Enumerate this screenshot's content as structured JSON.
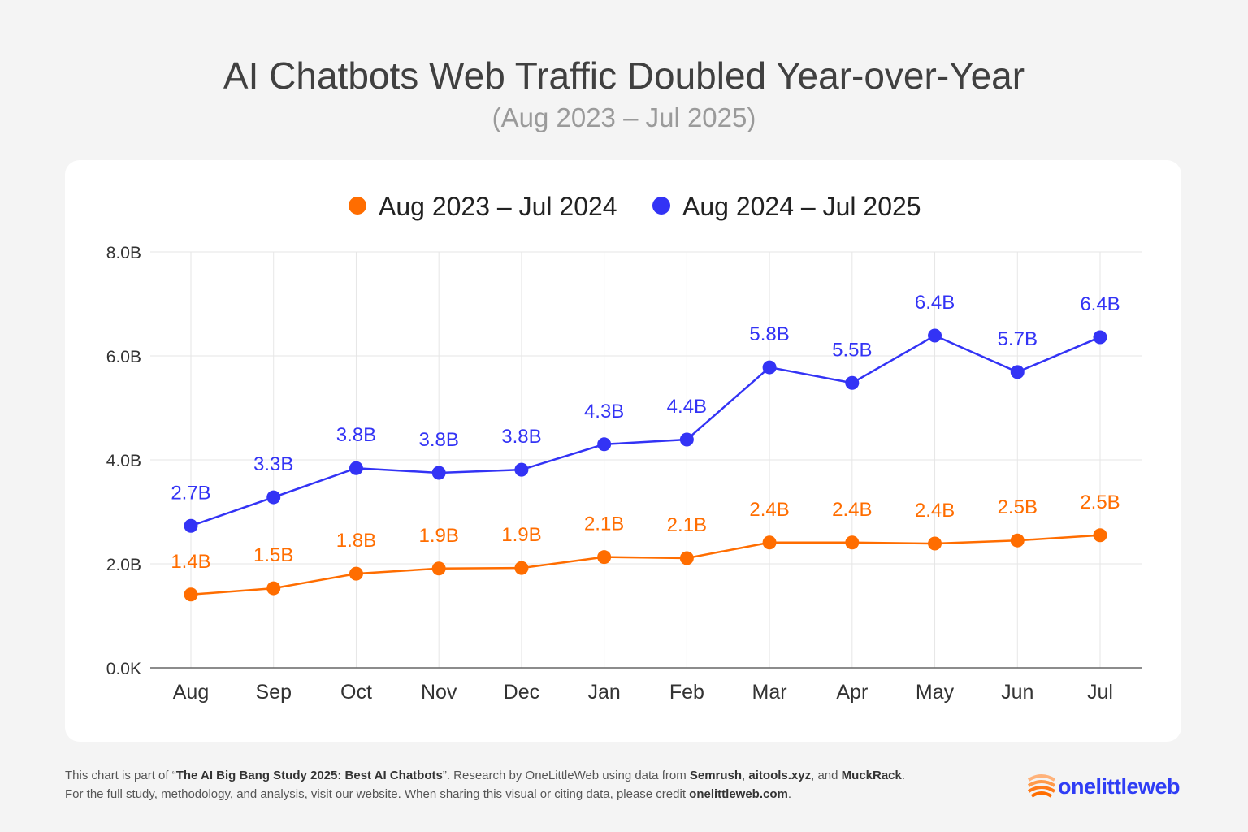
{
  "title": "AI Chatbots Web Traffic Doubled Year-over-Year",
  "subtitle": "(Aug 2023 – Jul 2025)",
  "chart_data": {
    "type": "line",
    "categories": [
      "Aug",
      "Sep",
      "Oct",
      "Nov",
      "Dec",
      "Jan",
      "Feb",
      "Mar",
      "Apr",
      "May",
      "Jun",
      "Jul"
    ],
    "ylim": [
      0,
      8
    ],
    "yticks": [
      0,
      2,
      4,
      6,
      8
    ],
    "ytick_labels": [
      "0.0K",
      "2.0B",
      "4.0B",
      "6.0B",
      "8.0B"
    ],
    "grid": true,
    "legend_position": "top-center",
    "series": [
      {
        "name": "Aug 2023 – Jul 2024",
        "color": "#ff6d00",
        "values": [
          1.41,
          1.53,
          1.81,
          1.91,
          1.92,
          2.13,
          2.11,
          2.41,
          2.41,
          2.39,
          2.45,
          2.55
        ],
        "labels": [
          "1.4B",
          "1.5B",
          "1.8B",
          "1.9B",
          "1.9B",
          "2.1B",
          "2.1B",
          "2.4B",
          "2.4B",
          "2.4B",
          "2.5B",
          "2.5B"
        ]
      },
      {
        "name": "Aug 2024 – Jul 2025",
        "color": "#3333f5",
        "values": [
          2.73,
          3.28,
          3.84,
          3.75,
          3.81,
          4.3,
          4.39,
          5.78,
          5.48,
          6.39,
          5.69,
          6.36
        ],
        "labels": [
          "2.7B",
          "3.3B",
          "3.8B",
          "3.8B",
          "3.8B",
          "4.3B",
          "4.4B",
          "5.8B",
          "5.5B",
          "6.4B",
          "5.7B",
          "6.4B"
        ]
      }
    ]
  },
  "footer": {
    "l1_a": "This chart is part of “",
    "l1_study": "The AI Big Bang Study 2025: Best AI Chatbots",
    "l1_b": "”. Research by OneLittleWeb using data from ",
    "l1_s1": "Semrush",
    "l1_c": ", ",
    "l1_s2": "aitools.xyz",
    "l1_d": ", and ",
    "l1_s3": "MuckRack",
    "l1_e": ".",
    "l2_a": "For the full study, methodology, and analysis, visit our website. When sharing this visual or citing data, please credit ",
    "l2_link": "onelittleweb.com",
    "l2_b": "."
  },
  "logo": {
    "text": "onelittleweb",
    "color": "#2f3df5",
    "mark_color": "#ff7a1a"
  }
}
